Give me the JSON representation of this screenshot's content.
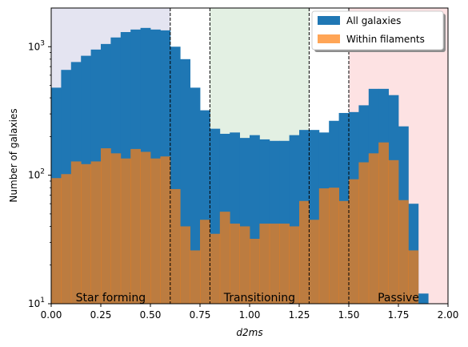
{
  "chart_data": {
    "type": "bar",
    "xlabel": "d2ms",
    "ylabel": "Number of galaxies",
    "xlim": [
      0.0,
      2.0
    ],
    "ylim": [
      10,
      2000
    ],
    "yscale": "log",
    "bin_width": 0.05,
    "xticks": [
      "0.00",
      "0.25",
      "0.50",
      "0.75",
      "1.00",
      "1.25",
      "1.50",
      "1.75",
      "2.00"
    ],
    "yticks": [
      {
        "value": 10,
        "base": "10",
        "exp": "1"
      },
      {
        "value": 100,
        "base": "10",
        "exp": "2"
      },
      {
        "value": 1000,
        "base": "10",
        "exp": "3"
      }
    ],
    "legend_position": "top-right",
    "series": [
      {
        "name": "All galaxies",
        "color": "#1f77b4",
        "x": [
          0.0,
          0.05,
          0.1,
          0.15,
          0.2,
          0.25,
          0.3,
          0.35,
          0.4,
          0.45,
          0.5,
          0.55,
          0.6,
          0.65,
          0.7,
          0.75,
          0.8,
          0.85,
          0.9,
          0.95,
          1.0,
          1.05,
          1.1,
          1.15,
          1.2,
          1.25,
          1.3,
          1.35,
          1.4,
          1.45,
          1.5,
          1.55,
          1.6,
          1.65,
          1.7,
          1.75,
          1.8,
          1.85
        ],
        "values": [
          480,
          660,
          760,
          850,
          950,
          1050,
          1180,
          1300,
          1360,
          1400,
          1360,
          1340,
          1000,
          800,
          480,
          320,
          230,
          210,
          215,
          195,
          205,
          190,
          185,
          185,
          205,
          225,
          225,
          215,
          265,
          305,
          310,
          350,
          470,
          470,
          420,
          240,
          60,
          12
        ]
      },
      {
        "name": "Within filaments",
        "color": "#ff7f0e",
        "x": [
          0.0,
          0.05,
          0.1,
          0.15,
          0.2,
          0.25,
          0.3,
          0.35,
          0.4,
          0.45,
          0.5,
          0.55,
          0.6,
          0.65,
          0.7,
          0.75,
          0.8,
          0.85,
          0.9,
          0.95,
          1.0,
          1.05,
          1.1,
          1.15,
          1.2,
          1.25,
          1.3,
          1.35,
          1.4,
          1.45,
          1.5,
          1.55,
          1.6,
          1.65,
          1.7,
          1.75,
          1.8
        ],
        "values": [
          95,
          102,
          128,
          122,
          128,
          162,
          148,
          135,
          160,
          152,
          135,
          140,
          78,
          40,
          26,
          45,
          35,
          52,
          42,
          40,
          32,
          42,
          42,
          42,
          40,
          63,
          45,
          79,
          80,
          63,
          93,
          126,
          148,
          180,
          131,
          64,
          26
        ]
      }
    ],
    "regions": [
      {
        "x0": 0.0,
        "x1": 0.6,
        "color": "#e4e4f1",
        "label": "Star forming"
      },
      {
        "x0": 0.8,
        "x1": 1.3,
        "color": "#e3f0e3",
        "label": "Transitioning"
      },
      {
        "x0": 1.5,
        "x1": 2.0,
        "color": "#fde2e3",
        "label": "Passive"
      }
    ],
    "vlines": [
      0.6,
      0.8,
      1.3,
      1.5
    ]
  }
}
